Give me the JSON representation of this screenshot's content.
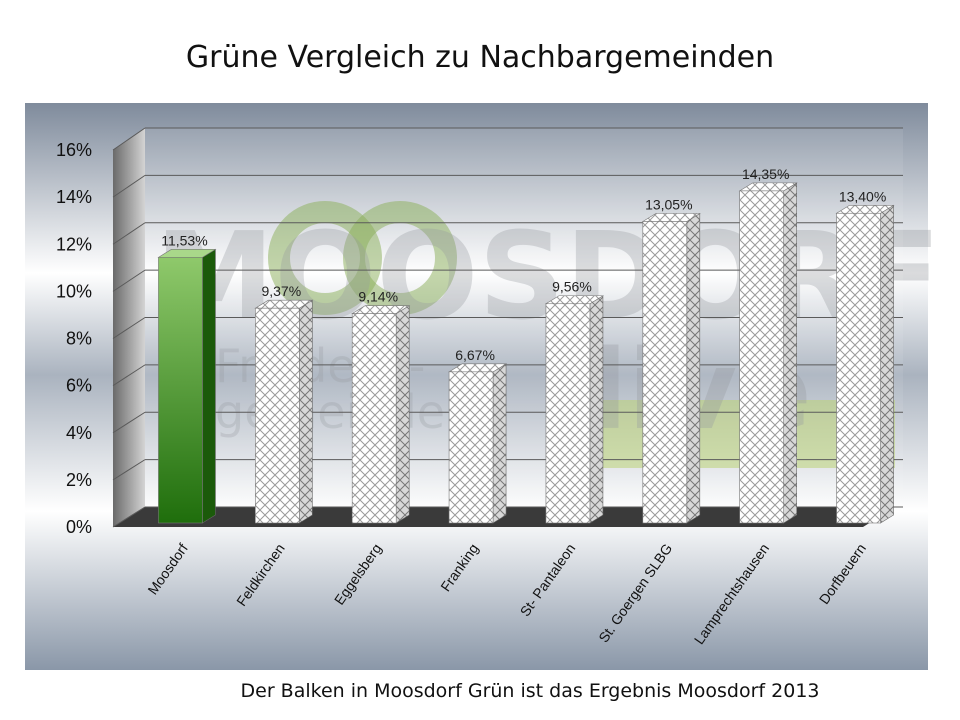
{
  "chart_data": {
    "type": "bar",
    "title": "Grüne Vergleich zu Nachbargemeinden",
    "categories": [
      "Moosdorf",
      "Feldkirchen",
      "Eggelsberg",
      "Franking",
      "St- Pantaleon",
      "St. Goergen SLBG",
      "Lamprechtshausen",
      "Dorfbeuern"
    ],
    "values": [
      11.53,
      9.37,
      9.14,
      6.67,
      9.56,
      13.05,
      14.35,
      13.4
    ],
    "data_labels": [
      "11,53%",
      "9,37%",
      "9,14%",
      "6,67%",
      "9,56%",
      "13,05%",
      "14,35%",
      "13,40%"
    ],
    "yticks": [
      "0%",
      "2%",
      "4%",
      "6%",
      "8%",
      "10%",
      "12%",
      "14%",
      "16%"
    ],
    "ylim": [
      0,
      16
    ],
    "grid": true,
    "highlight_color": "#2e7d1a",
    "bar_color": "#ffffff"
  },
  "watermark": {
    "top_text": "MOOSDORF",
    "line1": "Friedens-",
    "line2": "gemeinde",
    "side_text": "live"
  },
  "footnote": "Der Balken in Moosdorf Grün ist das Ergebnis Moosdorf 2013"
}
